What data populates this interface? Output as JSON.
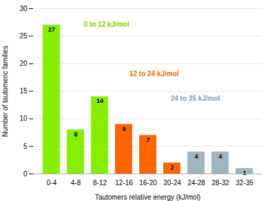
{
  "chart_data": {
    "type": "bar",
    "categories": [
      "0-4",
      "4-8",
      "8-12",
      "12-16",
      "16-20",
      "20-24",
      "24-28",
      "28-32",
      "32-35"
    ],
    "values": [
      27,
      8,
      14,
      9,
      7,
      2,
      4,
      4,
      1
    ],
    "colors": [
      "#88ee00",
      "#88ee00",
      "#88ee00",
      "#ff6600",
      "#ff6600",
      "#ff6600",
      "#a0b4c0",
      "#a0b4c0",
      "#a0b4c0"
    ],
    "xlabel": "Tautomers relative energy (kJ/mol)",
    "ylabel": "Number of tautomeric families",
    "ylim": [
      0,
      30
    ],
    "yticks": [
      0,
      5,
      10,
      15,
      20,
      25,
      30
    ],
    "grid": true,
    "data_labels": true,
    "annotations": [
      {
        "text": "0 to 12 kJ/mol",
        "color": "#88cc00"
      },
      {
        "text": "12 to 24 kJ/mol",
        "color": "#ff6600"
      },
      {
        "text": "24 to 35 kJ/mol",
        "color": "#8899aa"
      }
    ]
  }
}
